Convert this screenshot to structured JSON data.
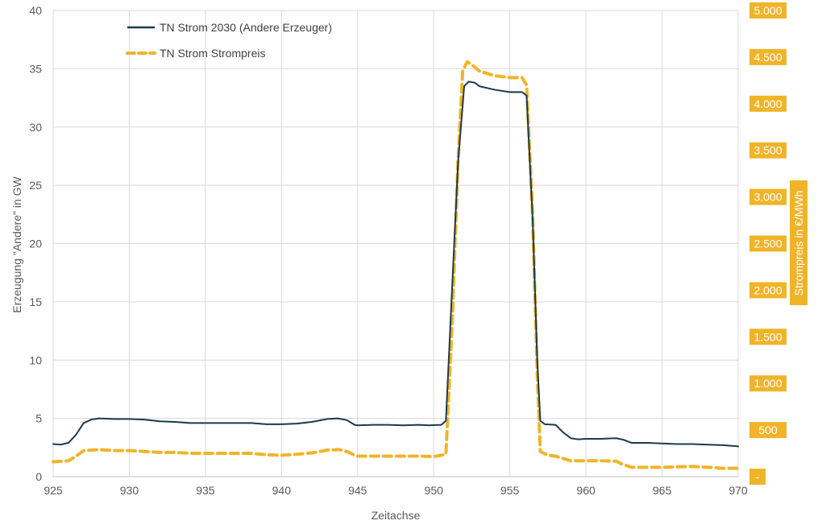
{
  "chart_data": {
    "type": "line",
    "xlabel": "Zeitachse",
    "ylabel": "Erzeugung \"Andere\" in GW",
    "y2label": "Strompreis in €/MWh",
    "xlim": [
      925,
      970
    ],
    "ylim": [
      0,
      40
    ],
    "y2lim": [
      0,
      5000
    ],
    "x_ticks": [
      "925",
      "930",
      "935",
      "940",
      "945",
      "950",
      "955",
      "960",
      "965",
      "970"
    ],
    "y_ticks": [
      "0",
      "5",
      "10",
      "15",
      "20",
      "25",
      "30",
      "35",
      "40"
    ],
    "y2_ticks": [
      "-",
      "500",
      "1.000",
      "1.500",
      "2.000",
      "2.500",
      "3.000",
      "3.500",
      "4.000",
      "4.500",
      "5.000"
    ],
    "grid": true,
    "legend_position": "top-left",
    "series": [
      {
        "name": "TN Strom 2030 (Andere Erzeuger)",
        "axis": "left",
        "color": "#1b3a4b",
        "style": "solid",
        "points": [
          [
            925,
            2.8
          ],
          [
            925.5,
            2.75
          ],
          [
            926,
            2.9
          ],
          [
            926.5,
            3.6
          ],
          [
            927,
            4.6
          ],
          [
            927.5,
            4.9
          ],
          [
            928,
            5.0
          ],
          [
            929,
            4.95
          ],
          [
            930,
            4.95
          ],
          [
            931,
            4.9
          ],
          [
            932,
            4.75
          ],
          [
            933,
            4.7
          ],
          [
            934,
            4.6
          ],
          [
            935,
            4.6
          ],
          [
            936,
            4.6
          ],
          [
            937,
            4.6
          ],
          [
            938,
            4.6
          ],
          [
            939,
            4.5
          ],
          [
            940,
            4.5
          ],
          [
            941,
            4.55
          ],
          [
            942,
            4.7
          ],
          [
            943,
            4.95
          ],
          [
            943.7,
            5.0
          ],
          [
            944.3,
            4.85
          ],
          [
            944.8,
            4.45
          ],
          [
            945,
            4.4
          ],
          [
            946,
            4.45
          ],
          [
            947,
            4.45
          ],
          [
            948,
            4.4
          ],
          [
            949,
            4.45
          ],
          [
            949.7,
            4.4
          ],
          [
            950.5,
            4.45
          ],
          [
            950.8,
            4.8
          ],
          [
            951.2,
            16.0
          ],
          [
            951.6,
            27.0
          ],
          [
            952,
            33.5
          ],
          [
            952.3,
            33.9
          ],
          [
            952.7,
            33.8
          ],
          [
            953,
            33.5
          ],
          [
            954,
            33.2
          ],
          [
            955,
            33.0
          ],
          [
            955.8,
            33.0
          ],
          [
            956.1,
            32.7
          ],
          [
            956.5,
            22.0
          ],
          [
            956.8,
            10.0
          ],
          [
            957,
            4.8
          ],
          [
            957.3,
            4.5
          ],
          [
            958,
            4.45
          ],
          [
            958.5,
            3.8
          ],
          [
            959,
            3.3
          ],
          [
            959.5,
            3.2
          ],
          [
            960,
            3.25
          ],
          [
            961,
            3.25
          ],
          [
            962,
            3.3
          ],
          [
            962.5,
            3.15
          ],
          [
            963,
            2.9
          ],
          [
            964,
            2.9
          ],
          [
            965,
            2.85
          ],
          [
            966,
            2.8
          ],
          [
            967,
            2.8
          ],
          [
            968,
            2.75
          ],
          [
            969,
            2.7
          ],
          [
            970,
            2.6
          ]
        ]
      },
      {
        "name": "TN Strom Strompreis",
        "axis": "right",
        "color": "#f0b429",
        "style": "dashed",
        "points": [
          [
            925,
            160
          ],
          [
            926,
            170
          ],
          [
            926.5,
            220
          ],
          [
            927,
            280
          ],
          [
            928,
            290
          ],
          [
            929,
            280
          ],
          [
            930,
            280
          ],
          [
            931,
            270
          ],
          [
            932,
            260
          ],
          [
            933,
            260
          ],
          [
            934,
            250
          ],
          [
            935,
            250
          ],
          [
            936,
            250
          ],
          [
            937,
            250
          ],
          [
            938,
            250
          ],
          [
            939,
            235
          ],
          [
            940,
            230
          ],
          [
            941,
            240
          ],
          [
            942,
            255
          ],
          [
            943,
            285
          ],
          [
            943.8,
            290
          ],
          [
            944.3,
            270
          ],
          [
            944.8,
            230
          ],
          [
            945,
            220
          ],
          [
            946,
            220
          ],
          [
            947,
            220
          ],
          [
            948,
            220
          ],
          [
            949,
            220
          ],
          [
            950,
            215
          ],
          [
            950.8,
            240
          ],
          [
            951.2,
            1600
          ],
          [
            951.6,
            3400
          ],
          [
            951.9,
            4350
          ],
          [
            952.2,
            4450
          ],
          [
            952.5,
            4420
          ],
          [
            953,
            4350
          ],
          [
            954,
            4300
          ],
          [
            955,
            4280
          ],
          [
            955.8,
            4280
          ],
          [
            956.1,
            4200
          ],
          [
            956.5,
            2800
          ],
          [
            956.8,
            1100
          ],
          [
            957,
            270
          ],
          [
            957.5,
            230
          ],
          [
            958,
            220
          ],
          [
            959,
            170
          ],
          [
            960,
            170
          ],
          [
            961,
            170
          ],
          [
            962,
            165
          ],
          [
            962.3,
            140
          ],
          [
            963,
            100
          ],
          [
            964,
            100
          ],
          [
            965,
            100
          ],
          [
            966,
            105
          ],
          [
            967,
            110
          ],
          [
            968,
            100
          ],
          [
            969,
            90
          ],
          [
            970,
            90
          ]
        ]
      }
    ]
  }
}
